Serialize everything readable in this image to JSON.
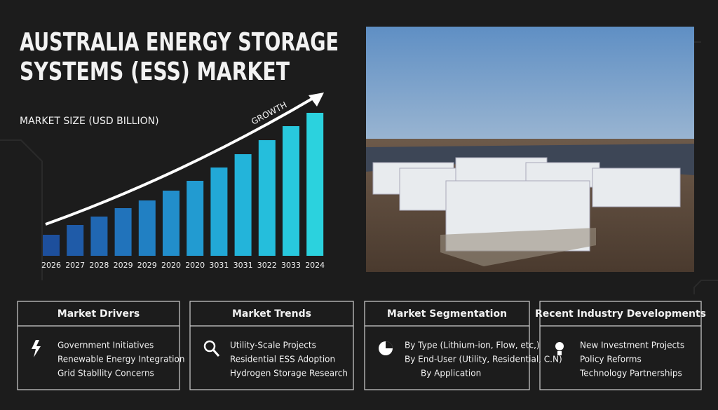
{
  "header": {
    "title_lines": [
      "AUSTRALIA ENERGY STORAGE",
      "SYSTEMS (ESS) MARKET"
    ]
  },
  "chart_data": {
    "type": "bar",
    "title": "MARKET SIZE (USD BILLION)",
    "annotation": "GROWTH",
    "categories": [
      "2026",
      "2027",
      "2028",
      "2029",
      "2029",
      "2020",
      "2020",
      "3031",
      "3031",
      "3022",
      "3033",
      "2024"
    ],
    "values": [
      30,
      44,
      56,
      68,
      79,
      93,
      107,
      126,
      145,
      165,
      185,
      204
    ],
    "colors": [
      "#1d4f9c",
      "#1f5ba8",
      "#2067b2",
      "#2173bb",
      "#2180c3",
      "#228ecb",
      "#229bd1",
      "#22a8d6",
      "#23b4da",
      "#25bedc",
      "#28c8dd",
      "#2bd2de"
    ]
  },
  "panels": [
    {
      "title": "Market Drivers",
      "items": [
        "Government Initiatives",
        "Renewable Energy Integration",
        "Grid Stabllity Concerns"
      ]
    },
    {
      "title": "Market Trends",
      "items": [
        "Utility-Scale Projects",
        "Residential ESS Adoption",
        "Hydrogen Storage Research"
      ]
    },
    {
      "title": "Market Segmentation",
      "items": [
        "By Type (Lithium-ion, Flow, etc,)",
        "By End-User (Utility, Residential, C.N)",
        "By Application"
      ]
    },
    {
      "title": "Recent Industry Developments",
      "items": [
        "New Investment Projects",
        "Policy Reforms",
        "Technology Partnerships"
      ]
    }
  ]
}
